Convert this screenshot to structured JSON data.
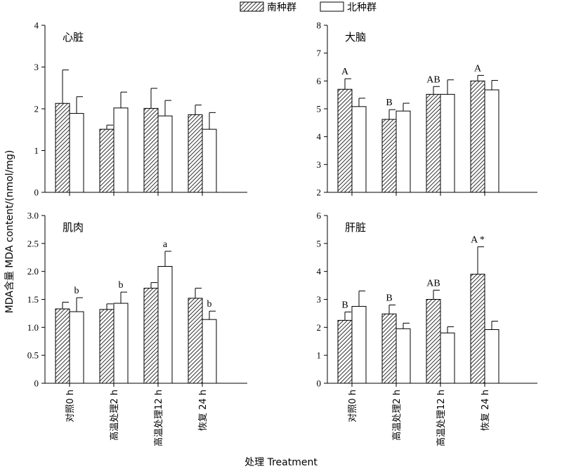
{
  "legend": {
    "south": "南种群",
    "north": "北种群"
  },
  "axes": {
    "ylabel": "MDA含量 MDA content/(nmol/mg)",
    "xlabel": "处理 Treatment"
  },
  "chart_data": [
    {
      "type": "bar",
      "title": "心脏",
      "categories": [
        "对照0 h",
        "高温处理2 h",
        "高温处理12 h",
        "恢复 24 h"
      ],
      "ylim": [
        0,
        4
      ],
      "yticks": [
        "0",
        "1",
        "2",
        "3",
        "4"
      ],
      "series": [
        {
          "name": "南种群",
          "values": [
            2.13,
            1.51,
            2.01,
            1.86
          ],
          "errors": [
            0.8,
            0.1,
            0.48,
            0.23
          ]
        },
        {
          "name": "北种群",
          "values": [
            1.89,
            2.02,
            1.83,
            1.51
          ],
          "errors": [
            0.4,
            0.38,
            0.37,
            0.4
          ]
        }
      ],
      "annotations": [
        [
          "",
          ""
        ],
        [
          "",
          ""
        ],
        [
          "",
          ""
        ],
        [
          "",
          ""
        ]
      ]
    },
    {
      "type": "bar",
      "title": "大脑",
      "categories": [
        "对照0 h",
        "高温处理2 h",
        "高温处理12 h",
        "恢复 24 h"
      ],
      "ylim": [
        2,
        8
      ],
      "yticks": [
        "2",
        "3",
        "4",
        "5",
        "6",
        "7",
        "8"
      ],
      "series": [
        {
          "name": "南种群",
          "values": [
            5.7,
            4.62,
            5.52,
            6.0
          ],
          "errors": [
            0.38,
            0.35,
            0.28,
            0.2
          ]
        },
        {
          "name": "北种群",
          "values": [
            5.08,
            4.92,
            5.52,
            5.68
          ],
          "errors": [
            0.3,
            0.28,
            0.52,
            0.34
          ]
        }
      ],
      "annotations": [
        [
          "A",
          ""
        ],
        [
          "B",
          ""
        ],
        [
          "AB",
          ""
        ],
        [
          "A",
          ""
        ]
      ]
    },
    {
      "type": "bar",
      "title": "肌肉",
      "categories": [
        "对照0 h",
        "高温处理2 h",
        "高温处理12 h",
        "恢复 24 h"
      ],
      "ylim": [
        0,
        3
      ],
      "yticks": [
        "0",
        "0.5",
        "1.0",
        "1.5",
        "2.0",
        "2.5",
        "3.0"
      ],
      "series": [
        {
          "name": "南种群",
          "values": [
            1.33,
            1.32,
            1.7,
            1.52
          ],
          "errors": [
            0.12,
            0.1,
            0.1,
            0.18
          ]
        },
        {
          "name": "北种群",
          "values": [
            1.28,
            1.43,
            2.09,
            1.14
          ],
          "errors": [
            0.25,
            0.2,
            0.27,
            0.15
          ]
        }
      ],
      "annotations": [
        [
          "",
          "b"
        ],
        [
          "",
          "b"
        ],
        [
          "",
          "a"
        ],
        [
          "",
          "b"
        ]
      ]
    },
    {
      "type": "bar",
      "title": "肝脏",
      "categories": [
        "对照0 h",
        "高温处理2 h",
        "高温处理12 h",
        "恢复 24 h"
      ],
      "ylim": [
        0,
        6
      ],
      "yticks": [
        "0",
        "1",
        "2",
        "3",
        "4",
        "5",
        "6"
      ],
      "series": [
        {
          "name": "南种群",
          "values": [
            2.25,
            2.48,
            3.0,
            3.9
          ],
          "errors": [
            0.3,
            0.32,
            0.33,
            0.98
          ]
        },
        {
          "name": "北种群",
          "values": [
            2.75,
            1.95,
            1.8,
            1.92
          ],
          "errors": [
            0.55,
            0.2,
            0.22,
            0.3
          ]
        }
      ],
      "annotations": [
        [
          "B",
          ""
        ],
        [
          "B",
          ""
        ],
        [
          "AB",
          ""
        ],
        [
          "A *",
          ""
        ]
      ]
    }
  ]
}
